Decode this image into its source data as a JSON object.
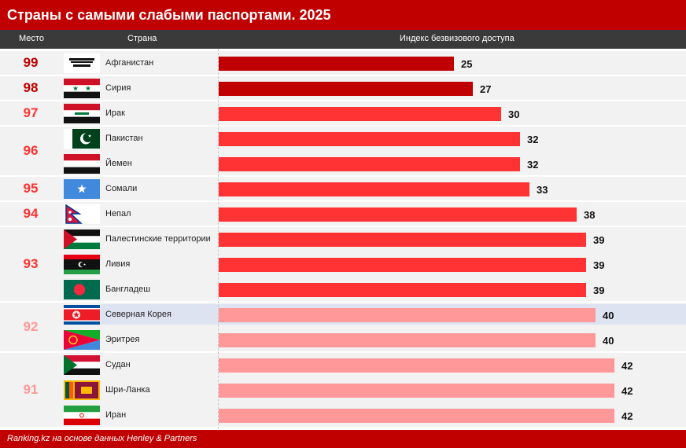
{
  "title": "Страны с самыми слабыми паспортами. 2025",
  "headers": {
    "rank": "Место",
    "country": "Страна",
    "index": "Индекс безвизового доступа"
  },
  "footer": "Ranking.kz на основе данных Henley & Partners",
  "colors": {
    "title_bg": "#c00000",
    "header_bg": "#3a3a3a",
    "bar_dark": "#c00000",
    "bar_mid": "#ff3333",
    "bar_light": "#ff9999",
    "highlight_row": "#dde3f0",
    "group_bg": "#f2f2f2"
  },
  "chart_data": {
    "type": "bar",
    "orientation": "horizontal",
    "title": "Страны с самыми слабыми паспортами. 2025",
    "xlabel": "Индекс безвизового доступа",
    "categories": [
      "Афганистан",
      "Сирия",
      "Ирак",
      "Пакистан",
      "Йемен",
      "Сомали",
      "Непал",
      "Палестинские территории",
      "Ливия",
      "Бангладеш",
      "Северная Корея",
      "Эритрея",
      "Судан",
      "Шри-Ланка",
      "Иран"
    ],
    "ranks": [
      99,
      98,
      97,
      96,
      96,
      95,
      94,
      93,
      93,
      93,
      92,
      92,
      91,
      91,
      91
    ],
    "values": [
      25,
      27,
      30,
      32,
      32,
      33,
      38,
      39,
      39,
      39,
      40,
      40,
      42,
      42,
      42
    ],
    "flags": [
      "afghanistan-flag",
      "syria-flag",
      "iraq-flag",
      "pakistan-flag",
      "yemen-flag",
      "somalia-flag",
      "nepal-flag",
      "palestine-flag",
      "libya-flag",
      "bangladesh-flag",
      "north-korea-flag",
      "eritrea-flag",
      "sudan-flag",
      "sri-lanka-flag",
      "iran-flag"
    ],
    "highlighted": "Северная Корея",
    "xlim": [
      0,
      42
    ]
  }
}
